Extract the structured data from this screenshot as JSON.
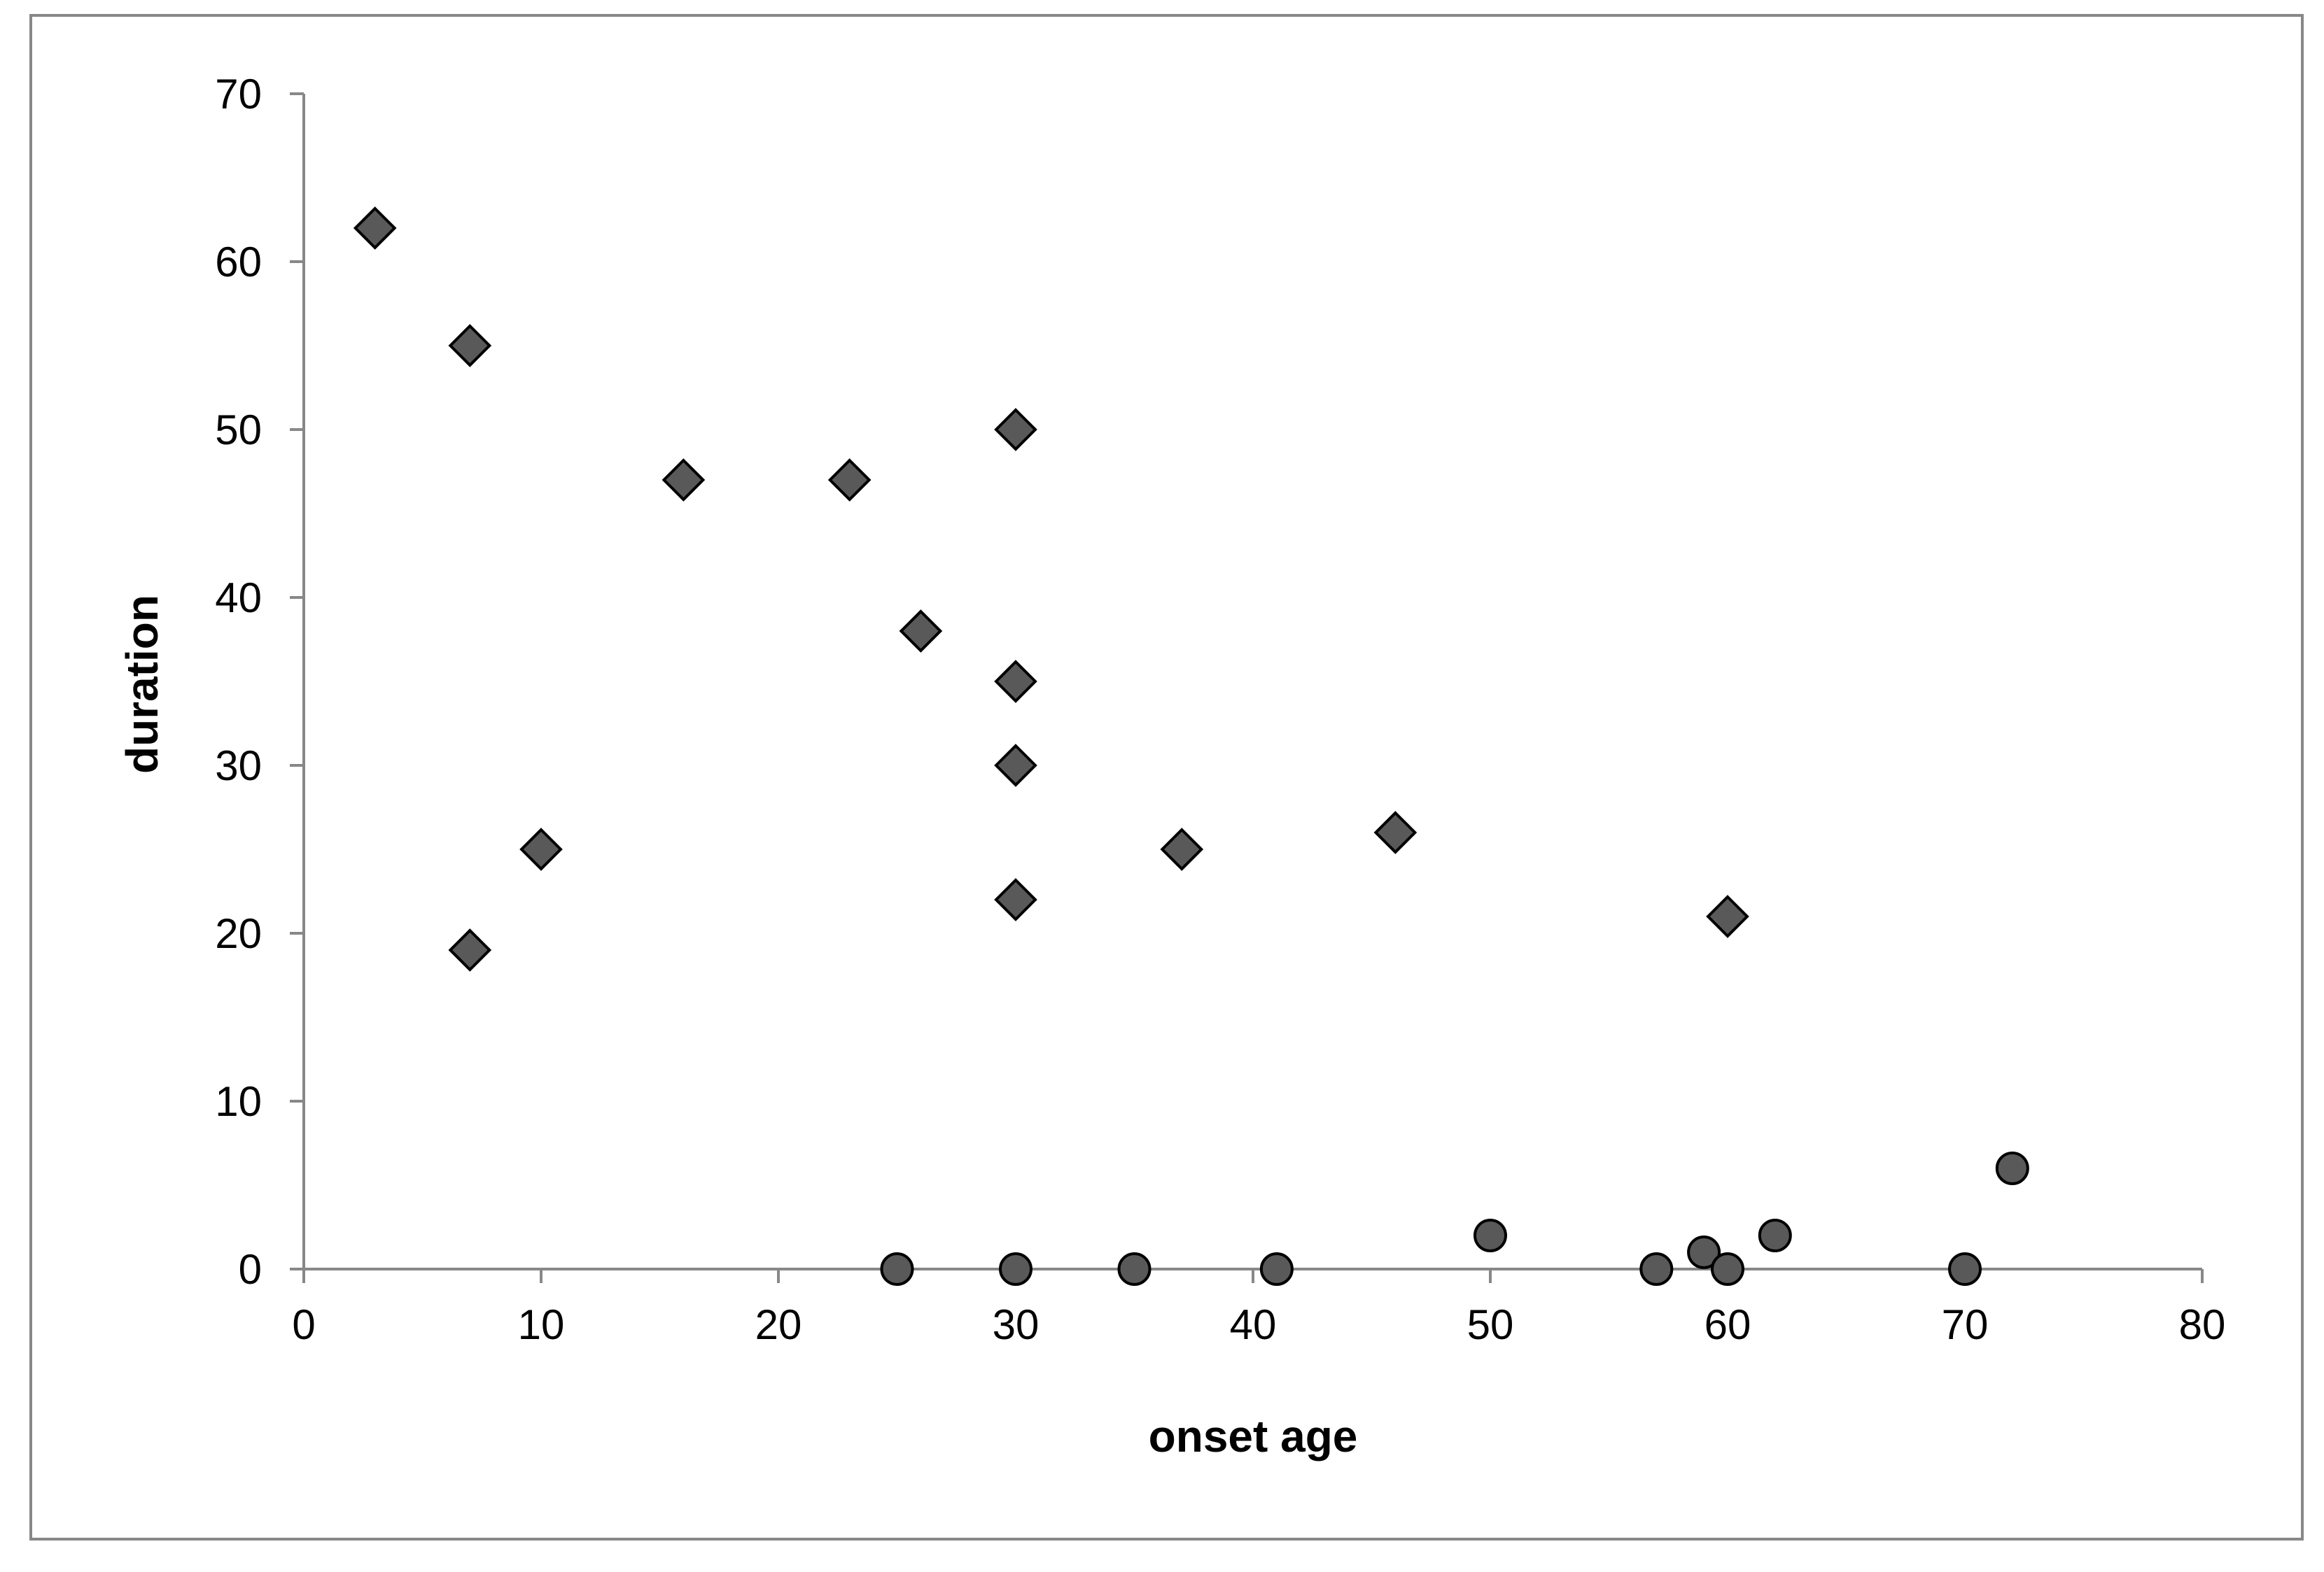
{
  "chart_data": {
    "type": "scatter",
    "title": "",
    "xlabel": "onset age",
    "ylabel": "duration",
    "xlim": [
      0,
      80
    ],
    "ylim": [
      0,
      70
    ],
    "x_ticks": [
      "0",
      "10",
      "20",
      "30",
      "40",
      "50",
      "60",
      "70",
      "80"
    ],
    "y_ticks": [
      "0",
      "10",
      "20",
      "30",
      "40",
      "50",
      "60",
      "70"
    ],
    "grid": false,
    "legend": "none",
    "marker_color": "#595959",
    "marker_edge": "#000000",
    "series": [
      {
        "marker": "diamond",
        "points": [
          {
            "x": 3,
            "y": 62
          },
          {
            "x": 7,
            "y": 55
          },
          {
            "x": 7,
            "y": 19
          },
          {
            "x": 10,
            "y": 25
          },
          {
            "x": 16,
            "y": 47
          },
          {
            "x": 23,
            "y": 47
          },
          {
            "x": 26,
            "y": 38
          },
          {
            "x": 30,
            "y": 50
          },
          {
            "x": 30,
            "y": 35
          },
          {
            "x": 30,
            "y": 30
          },
          {
            "x": 30,
            "y": 22
          },
          {
            "x": 37,
            "y": 25
          },
          {
            "x": 46,
            "y": 26
          },
          {
            "x": 60,
            "y": 21
          }
        ]
      },
      {
        "marker": "circle",
        "points": [
          {
            "x": 25,
            "y": 0
          },
          {
            "x": 30,
            "y": 0
          },
          {
            "x": 35,
            "y": 0
          },
          {
            "x": 41,
            "y": 0
          },
          {
            "x": 50,
            "y": 2
          },
          {
            "x": 57,
            "y": 0
          },
          {
            "x": 59,
            "y": 1
          },
          {
            "x": 60,
            "y": 0
          },
          {
            "x": 62,
            "y": 2
          },
          {
            "x": 70,
            "y": 0
          },
          {
            "x": 72,
            "y": 6
          }
        ]
      }
    ]
  }
}
